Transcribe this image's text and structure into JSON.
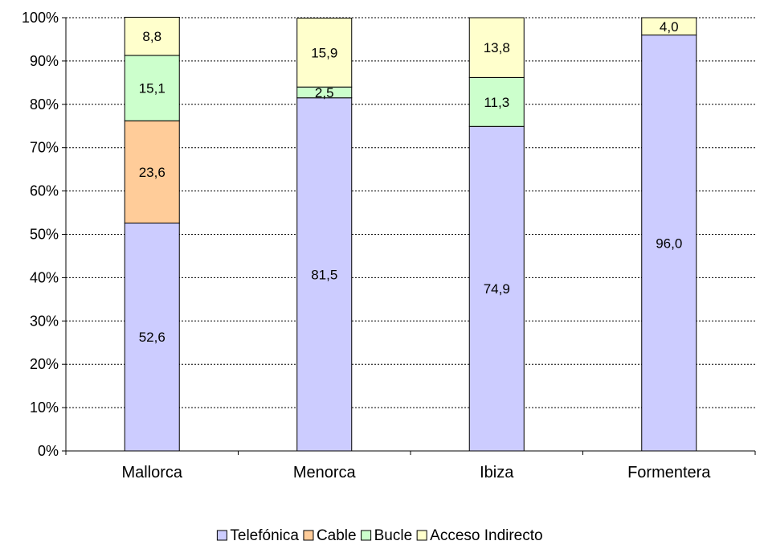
{
  "chart_data": {
    "type": "bar",
    "stacked": true,
    "percent_stacked": true,
    "categories": [
      "Mallorca",
      "Menorca",
      "Ibiza",
      "Formentera"
    ],
    "series": [
      {
        "name": "Telefónica",
        "color": "#ccccff",
        "values": [
          52.6,
          81.5,
          74.9,
          96.0
        ],
        "labels": [
          "52,6",
          "81,5",
          "74,9",
          "96,0"
        ]
      },
      {
        "name": "Cable",
        "color": "#ffcc99",
        "values": [
          23.6,
          0,
          0,
          0
        ],
        "labels": [
          "23,6",
          "",
          "",
          ""
        ]
      },
      {
        "name": "Bucle",
        "color": "#ccffcc",
        "values": [
          15.1,
          2.5,
          11.3,
          0
        ],
        "labels": [
          "15,1",
          "2,5",
          "11,3",
          ""
        ]
      },
      {
        "name": "Acceso Indirecto",
        "color": "#ffffcc",
        "values": [
          8.8,
          15.9,
          13.8,
          4.0
        ],
        "labels": [
          "8,8",
          "15,9",
          "13,8",
          "4,0"
        ]
      }
    ],
    "y_ticks": [
      "0%",
      "10%",
      "20%",
      "30%",
      "40%",
      "50%",
      "60%",
      "70%",
      "80%",
      "90%",
      "100%"
    ],
    "ylim": [
      0,
      100
    ],
    "grid": true,
    "legend_position": "bottom"
  }
}
